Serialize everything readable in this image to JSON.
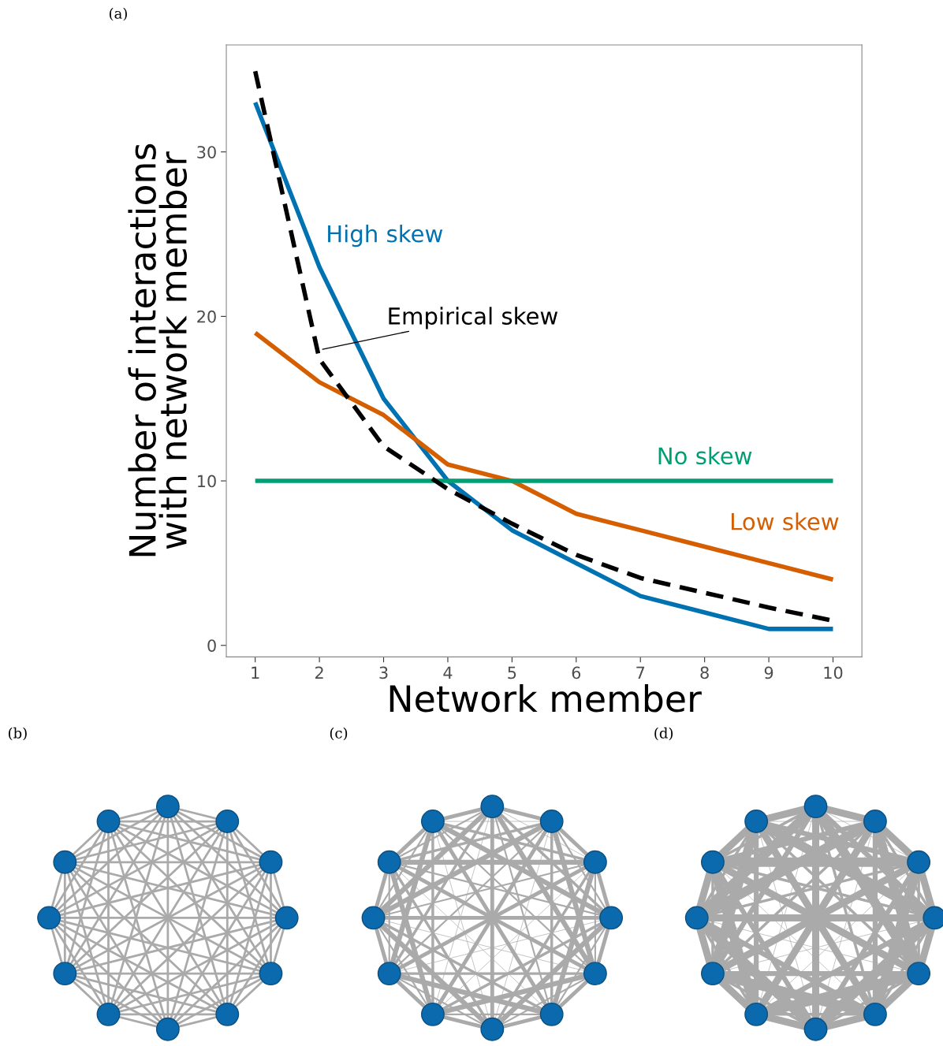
{
  "chart_data": {
    "type": "line",
    "xlabel": "Network member",
    "ylabel": "Number of interactions\nwith network member",
    "x": [
      1,
      2,
      3,
      4,
      5,
      6,
      7,
      8,
      9,
      10
    ],
    "series": [
      {
        "name": "High skew",
        "color": "#0072b2",
        "values": [
          33,
          23,
          15,
          10,
          7,
          5,
          3,
          2,
          1,
          1
        ]
      },
      {
        "name": "Low skew",
        "color": "#d55e00",
        "values": [
          19,
          16,
          14,
          11,
          10,
          8,
          7,
          6,
          5,
          4
        ]
      },
      {
        "name": "No skew",
        "color": "#009e73",
        "values": [
          10,
          10,
          10,
          10,
          10,
          10,
          10,
          10,
          10,
          10
        ]
      },
      {
        "name": "Empirical skew",
        "color": "#000000",
        "line_style": "dashed",
        "values": [
          34.9,
          17.4,
          12.1,
          9.5,
          7.4,
          5.5,
          4.1,
          3.2,
          2.3,
          1.5
        ]
      }
    ],
    "xlim": [
      0.55,
      10.45
    ],
    "ylim": [
      -0.7,
      36.5
    ],
    "xticks": [
      1,
      2,
      3,
      4,
      5,
      6,
      7,
      8,
      9,
      10
    ],
    "yticks": [
      0,
      10,
      20,
      30
    ],
    "grid": false,
    "legend": false,
    "marker": "none",
    "annotations": [
      "(a)",
      "(b)",
      "(c)",
      "(d)"
    ]
  }
}
